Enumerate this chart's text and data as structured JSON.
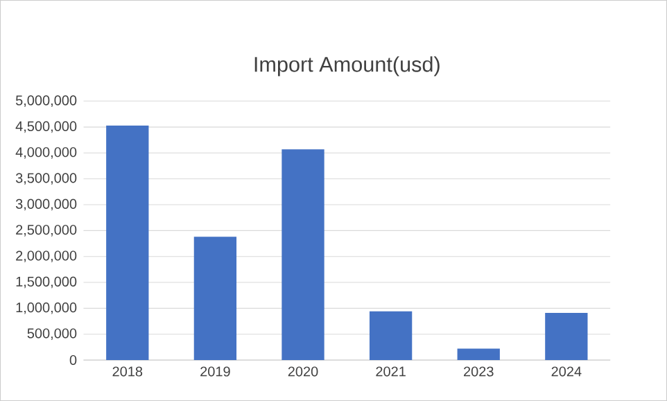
{
  "chart_data": {
    "type": "bar",
    "title": "Import Amount(usd)",
    "categories": [
      "2018",
      "2019",
      "2020",
      "2021",
      "2023",
      "2024"
    ],
    "values": [
      4530000,
      2380000,
      4070000,
      940000,
      220000,
      910000
    ],
    "color": "#4472c4",
    "ylim": [
      0,
      5000000
    ],
    "yticks": [
      {
        "value": 0,
        "label": "0"
      },
      {
        "value": 500000,
        "label": "500,000"
      },
      {
        "value": 1000000,
        "label": "1,000,000"
      },
      {
        "value": 1500000,
        "label": "1,500,000"
      },
      {
        "value": 2000000,
        "label": "2,000,000"
      },
      {
        "value": 2500000,
        "label": "2,500,000"
      },
      {
        "value": 3000000,
        "label": "3,000,000"
      },
      {
        "value": 3500000,
        "label": "3,500,000"
      },
      {
        "value": 4000000,
        "label": "4,000,000"
      },
      {
        "value": 4500000,
        "label": "4,500,000"
      },
      {
        "value": 5000000,
        "label": "5,000,000"
      }
    ],
    "grid": "y"
  }
}
